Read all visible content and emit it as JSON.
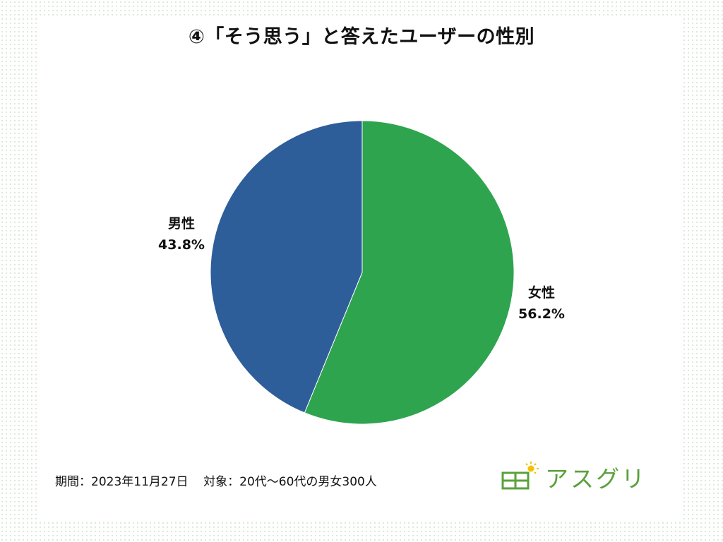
{
  "chart_data": {
    "type": "pie",
    "title": "④「そう思う」と答えたユーザーの性別",
    "slices": [
      {
        "label": "女性",
        "value": 56.2,
        "value_text": "56.2%",
        "color": "#2ea44f"
      },
      {
        "label": "男性",
        "value": 43.8,
        "value_text": "43.8%",
        "color": "#2e5e99"
      }
    ],
    "start": "12 o'clock",
    "direction": "clockwise"
  },
  "footer": {
    "period_label": "期間：",
    "period_value": "2023年11月27日",
    "target_label": "対象：",
    "target_value": "20代〜60代の男女300人"
  },
  "logo": {
    "text": "アスグリ",
    "icon": "building-sun-icon",
    "color": "#5aa13c"
  }
}
